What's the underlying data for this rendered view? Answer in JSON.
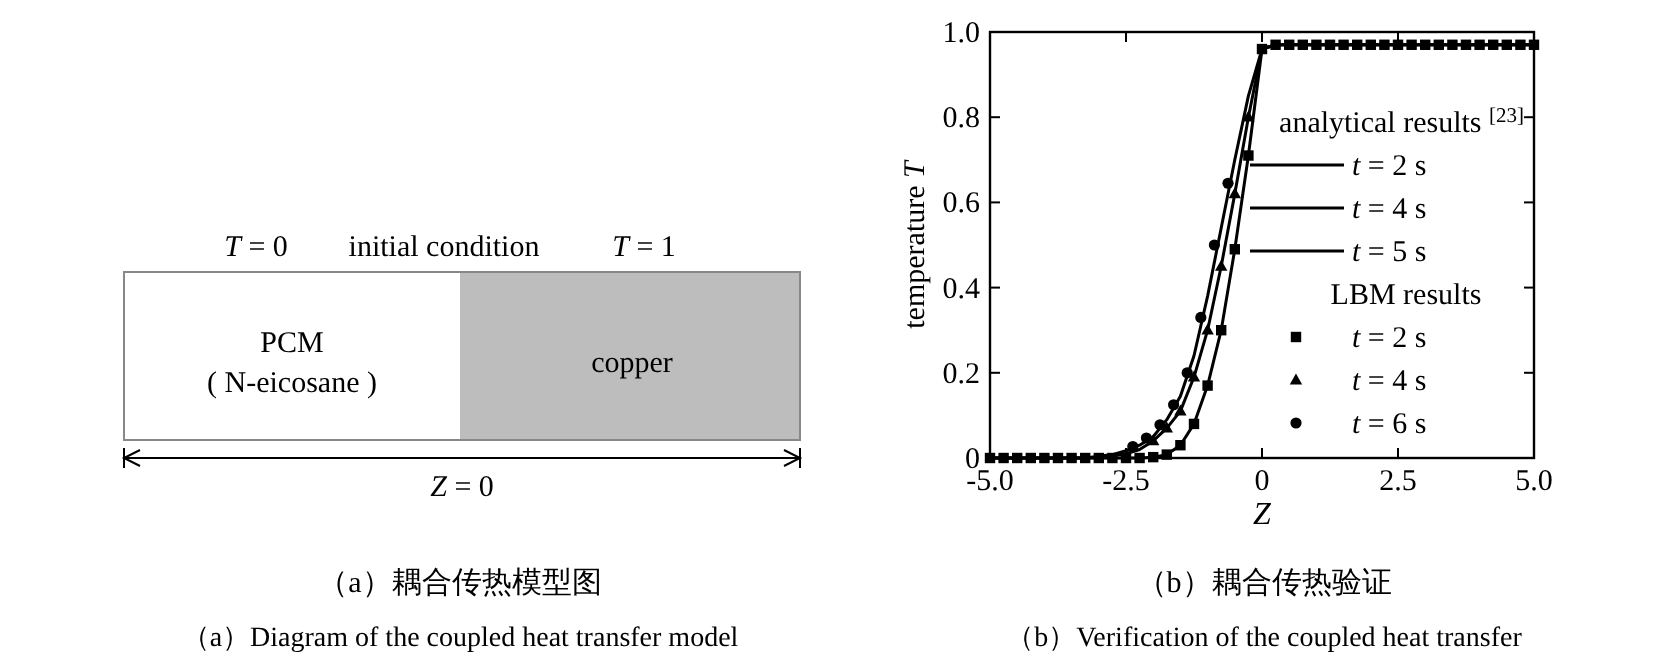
{
  "chart_data": [
    {
      "type": "other",
      "title": "（a）耦合传热模型图",
      "subtitle": "（a）Diagram of the coupled heat transfer model",
      "annotations": [
        "*T* = 0",
        "initial condition",
        "*T* = 1",
        "PCM",
        "( N-eicosane )",
        "copper",
        "*Z* = 0"
      ]
    },
    {
      "type": "line",
      "title": "（b）耦合传热验证",
      "subtitle": "（b）Verification of the coupled heat transfer",
      "xlabel": "Z",
      "ylabel": "temperature *T*",
      "legend_title": "analytical results $^{[23]}$",
      "annotations": [
        "LBM results"
      ],
      "x": [
        -5,
        -4.75,
        -4.5,
        -4.25,
        -4,
        -3.75,
        -3.5,
        -3.25,
        -3,
        -2.75,
        -2.5,
        -2.25,
        -2,
        -1.75,
        -1.5,
        -1.25,
        -1,
        -0.75,
        -0.5,
        -0.25,
        0,
        0.25,
        0.5,
        0.75,
        1,
        1.25,
        1.5,
        1.75,
        2,
        2.25,
        2.5,
        2.75,
        3,
        3.25,
        3.5,
        3.75,
        4,
        4.25,
        4.5,
        4.75,
        5
      ],
      "xlim": [
        -5,
        5
      ],
      "ylim": [
        0,
        1
      ],
      "xticks": [
        {
          "value": -5,
          "label": "-5.0"
        },
        -2.5,
        0,
        2.5,
        {
          "value": 5,
          "label": "5.0"
        }
      ],
      "yticks": [
        0,
        0.2,
        0.4,
        0.6,
        0.8,
        {
          "value": 1,
          "label": "1.0"
        }
      ],
      "legend": "right",
      "grid": false,
      "series": [
        {
          "name": "*t* = 2 s",
          "type": "line",
          "marker": "none",
          "color": "#000000",
          "values": [
            0,
            0,
            0,
            0,
            0,
            0,
            0,
            0,
            0,
            0,
            0,
            0,
            0.002,
            0.008,
            0.03,
            0.08,
            0.17,
            0.3,
            0.49,
            0.71,
            0.96,
            0.97,
            0.97,
            0.97,
            0.97,
            0.97,
            0.97,
            0.97,
            0.97,
            0.97,
            0.97,
            0.97,
            0.97,
            0.97,
            0.97,
            0.97,
            0.97,
            0.97,
            0.97,
            0.97,
            0.97
          ]
        },
        {
          "name": "*t* = 4 s",
          "type": "line",
          "marker": "none",
          "color": "#000000",
          "values": [
            0,
            0,
            0,
            0,
            0,
            0,
            0,
            0,
            0.002,
            0.005,
            0.01,
            0.02,
            0.04,
            0.07,
            0.11,
            0.19,
            0.3,
            0.45,
            0.62,
            0.8,
            0.96,
            0.97,
            0.97,
            0.97,
            0.97,
            0.97,
            0.97,
            0.97,
            0.97,
            0.97,
            0.97,
            0.97,
            0.97,
            0.97,
            0.97,
            0.97,
            0.97,
            0.97,
            0.97,
            0.97,
            0.97
          ]
        },
        {
          "name": "*t* = 5 s",
          "type": "line",
          "marker": "none",
          "color": "#000000",
          "values": [
            0,
            0,
            0,
            0,
            0,
            0,
            0,
            0,
            0.004,
            0.008,
            0.017,
            0.03,
            0.05,
            0.09,
            0.145,
            0.24,
            0.38,
            0.54,
            0.7,
            0.85,
            0.96,
            0.97,
            0.97,
            0.97,
            0.97,
            0.97,
            0.97,
            0.97,
            0.97,
            0.97,
            0.97,
            0.97,
            0.97,
            0.97,
            0.97,
            0.97,
            0.97,
            0.97,
            0.97,
            0.97,
            0.97
          ]
        },
        {
          "name": "*t* = 2 s",
          "type": "scatter",
          "marker": "square",
          "color": "#000000",
          "values": [
            0,
            0,
            0,
            0,
            0,
            0,
            0,
            0,
            0,
            0,
            0,
            0,
            0.002,
            0.008,
            0.03,
            0.08,
            0.17,
            0.3,
            0.49,
            0.71,
            0.96,
            0.97,
            0.97,
            0.97,
            0.97,
            0.97,
            0.97,
            0.97,
            0.97,
            0.97,
            0.97,
            0.97,
            0.97,
            0.97,
            0.97,
            0.97,
            0.97,
            0.97,
            0.97,
            0.97,
            0.97
          ]
        },
        {
          "name": "*t* = 4 s",
          "type": "scatter",
          "marker": "triangle",
          "color": "#000000",
          "x": [
            -2,
            -1.75,
            -1.5,
            -1.25,
            -1,
            -0.75,
            -0.5,
            -0.25
          ],
          "values": [
            0.04,
            0.07,
            0.11,
            0.19,
            0.3,
            0.45,
            0.62,
            0.8
          ]
        },
        {
          "name": "*t* = 6 s",
          "type": "scatter",
          "marker": "circle",
          "color": "#000000",
          "x": [
            -2.375,
            -2.125,
            -1.875,
            -1.625,
            -1.375,
            -1.125,
            -0.875,
            -0.625
          ],
          "values": [
            0.027,
            0.047,
            0.078,
            0.125,
            0.2,
            0.33,
            0.5,
            0.645
          ]
        }
      ]
    }
  ]
}
